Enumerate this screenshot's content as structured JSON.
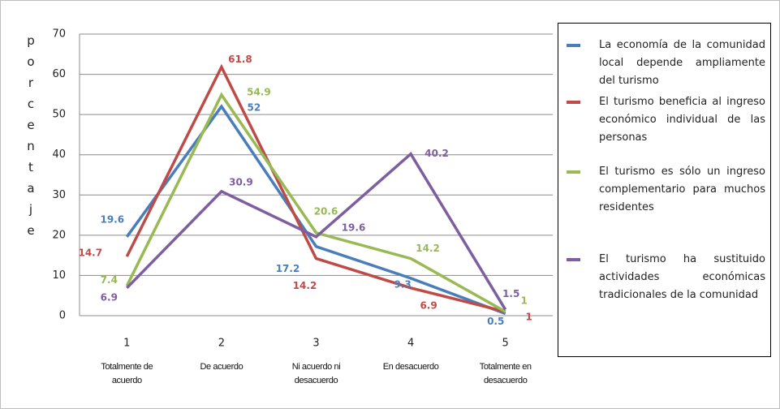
{
  "chart_data": {
    "type": "line",
    "y_label": "porcentaje",
    "categories": [
      "1",
      "2",
      "3",
      "4",
      "5"
    ],
    "category_descriptions": [
      "Totalmente de acuerdo",
      "De acuerdo",
      "Ni acuerdo ni desacuerdo",
      "En desacuerdo",
      "Totalmente en desacuerdo"
    ],
    "ylim": [
      0,
      70
    ],
    "yticks": [
      0,
      10,
      20,
      30,
      40,
      50,
      60,
      70
    ],
    "grid": true,
    "legend": "right",
    "series": [
      {
        "name": "La economía de la comunidad local depende ampliamente del turismo",
        "color": "#4a7ebb",
        "values": [
          19.6,
          52,
          17.2,
          9.3,
          0.5
        ]
      },
      {
        "name": "El turismo beneficia al ingreso económico individual de las personas",
        "color": "#be4b48",
        "values": [
          14.7,
          61.8,
          14.2,
          6.9,
          1
        ]
      },
      {
        "name": "El turismo es sólo un ingreso complementario para muchos residentes",
        "color": "#98b954",
        "values": [
          7.4,
          54.9,
          20.6,
          14.2,
          1
        ]
      },
      {
        "name": "El turismo ha sustituido actividades económicas tradicionales de la comunidad",
        "color": "#7d5fa0",
        "values": [
          6.9,
          30.9,
          19.6,
          40.2,
          1.5
        ]
      }
    ]
  }
}
